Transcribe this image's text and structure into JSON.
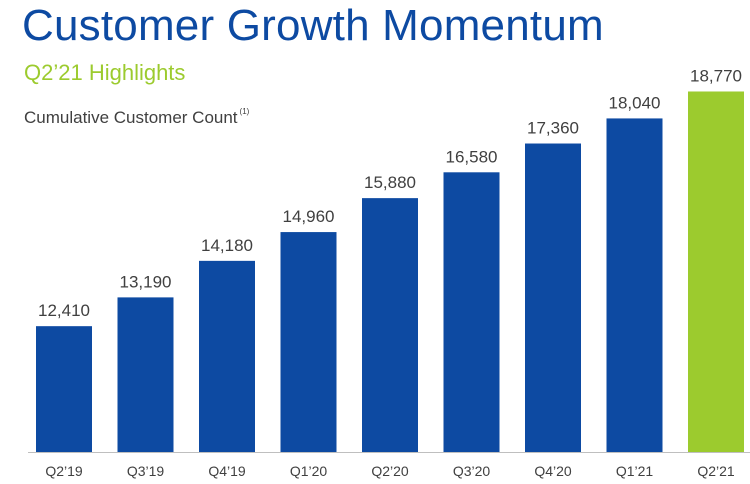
{
  "header": {
    "title": "Customer Growth Momentum",
    "subtitle": "Q2’21 Highlights"
  },
  "chart_data": {
    "type": "bar",
    "title": "Cumulative Customer Count",
    "title_footnote": "(1)",
    "categories": [
      "Q2’19",
      "Q3’19",
      "Q4’19",
      "Q1’20",
      "Q2’20",
      "Q3’20",
      "Q4’20",
      "Q1’21",
      "Q2’21"
    ],
    "values": [
      12410,
      13190,
      14180,
      14960,
      15880,
      16580,
      17360,
      18040,
      18770
    ],
    "value_labels": [
      "12,410",
      "13,190",
      "14,180",
      "14,960",
      "15,880",
      "16,580",
      "17,360",
      "18,040",
      "18,770"
    ],
    "highlight_index": 8,
    "colors": {
      "bar": "#0d4aa2",
      "highlight": "#9ccb2e",
      "text": "#404040",
      "axis": "#bfbfbf"
    },
    "xlabel": "",
    "ylabel": "",
    "ylim": [
      9000,
      19000
    ],
    "grid": false,
    "legend": "none"
  }
}
